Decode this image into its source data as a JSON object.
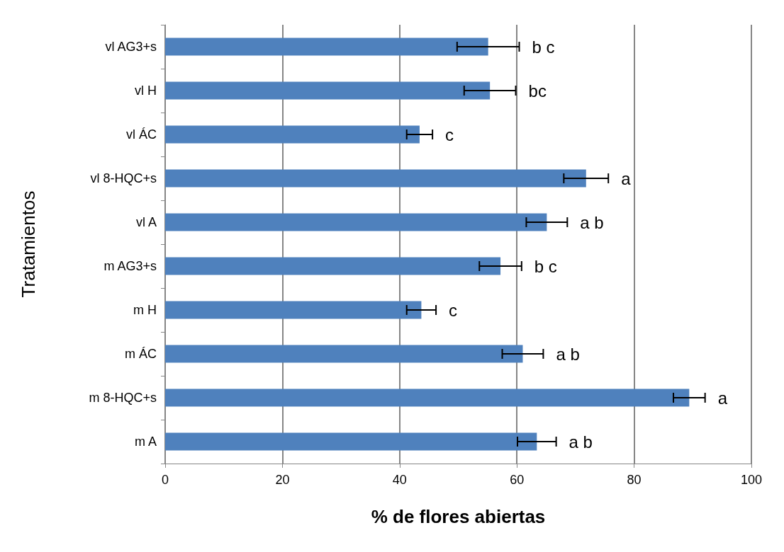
{
  "chart_data": {
    "type": "bar",
    "orientation": "horizontal",
    "xlabel": "% de flores abiertas",
    "ylabel": "Tratamientos",
    "categories": [
      "vl AG3+s",
      "vl H",
      "vl ÁC",
      "vl 8-HQC+s",
      "vl A",
      "m AG3+s",
      "m H",
      "m ÁC",
      "m 8-HQC+s",
      "m A"
    ],
    "values": [
      55.1,
      55.4,
      43.4,
      71.8,
      65.1,
      57.2,
      43.7,
      61.0,
      89.4,
      63.4
    ],
    "errors": [
      5.3,
      4.4,
      2.2,
      3.8,
      3.5,
      3.6,
      2.5,
      3.5,
      2.7,
      3.3
    ],
    "value_labels": [
      "b c",
      "bc",
      "c",
      "a",
      "a b",
      "b c",
      "c",
      "a b",
      "a",
      "a b"
    ],
    "color": "#4f81bd",
    "xlim": [
      0,
      100
    ],
    "xticks": [
      0,
      20,
      40,
      60,
      80,
      100
    ],
    "grid": "x"
  }
}
